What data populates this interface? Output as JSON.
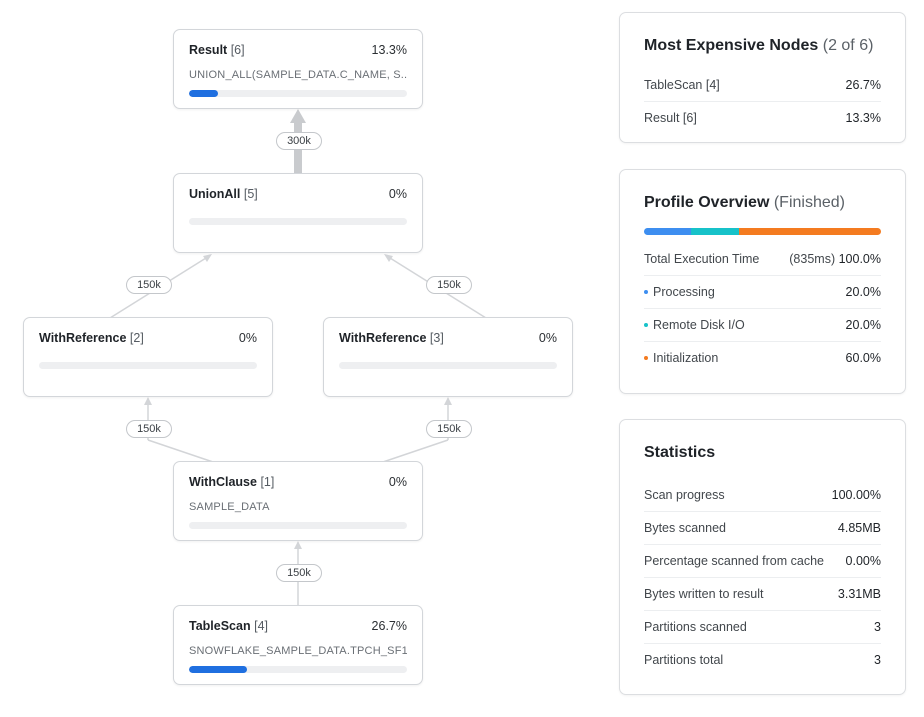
{
  "graph": {
    "nodes": {
      "result": {
        "name": "Result",
        "id": "[6]",
        "pct": "13.3%",
        "detail": "UNION_ALL(SAMPLE_DATA.C_NAME, S...",
        "fraction": 0.133
      },
      "union_all": {
        "name": "UnionAll",
        "id": "[5]",
        "pct": "0%",
        "detail": "",
        "fraction": 0
      },
      "with_ref_2": {
        "name": "WithReference",
        "id": "[2]",
        "pct": "0%",
        "detail": "",
        "fraction": 0
      },
      "with_ref_3": {
        "name": "WithReference",
        "id": "[3]",
        "pct": "0%",
        "detail": "",
        "fraction": 0
      },
      "with_clause": {
        "name": "WithClause",
        "id": "[1]",
        "pct": "0%",
        "detail": "SAMPLE_DATA",
        "fraction": 0
      },
      "table_scan": {
        "name": "TableScan",
        "id": "[4]",
        "pct": "26.7%",
        "detail": "SNOWFLAKE_SAMPLE_DATA.TPCH_SF1...",
        "fraction": 0.267
      }
    },
    "edges": {
      "union_to_result": "300k",
      "ref2_to_union": "150k",
      "ref3_to_union": "150k",
      "clause_to_ref2": "150k",
      "clause_to_ref3": "150k",
      "scan_to_clause": "150k"
    }
  },
  "most_expensive": {
    "title": "Most Expensive Nodes",
    "subtitle": "(2 of 6)",
    "rows": [
      {
        "label": "TableScan [4]",
        "value": "26.7%"
      },
      {
        "label": "Result [6]",
        "value": "13.3%"
      }
    ]
  },
  "profile_overview": {
    "title": "Profile Overview",
    "subtitle": "(Finished)",
    "segments": [
      {
        "name": "Processing",
        "fraction": 0.2,
        "color": "#3d8ef0"
      },
      {
        "name": "Remote Disk I/O",
        "fraction": 0.2,
        "color": "#17c2c9"
      },
      {
        "name": "Initialization",
        "fraction": 0.6,
        "color": "#f47b20"
      }
    ],
    "total_label": "Total Execution Time",
    "total_time": "(835ms)",
    "total_pct": "100.0%",
    "rows": [
      {
        "label": "Processing",
        "value": "20.0%",
        "color": "#3d8ef0"
      },
      {
        "label": "Remote Disk I/O",
        "value": "20.0%",
        "color": "#17c2c9"
      },
      {
        "label": "Initialization",
        "value": "60.0%",
        "color": "#f47b20"
      }
    ]
  },
  "statistics": {
    "title": "Statistics",
    "rows": [
      {
        "label": "Scan progress",
        "value": "100.00%"
      },
      {
        "label": "Bytes scanned",
        "value": "4.85MB"
      },
      {
        "label": "Percentage scanned from cache",
        "value": "0.00%"
      },
      {
        "label": "Bytes written to result",
        "value": "3.31MB"
      },
      {
        "label": "Partitions scanned",
        "value": "3"
      },
      {
        "label": "Partitions total",
        "value": "3"
      }
    ]
  }
}
